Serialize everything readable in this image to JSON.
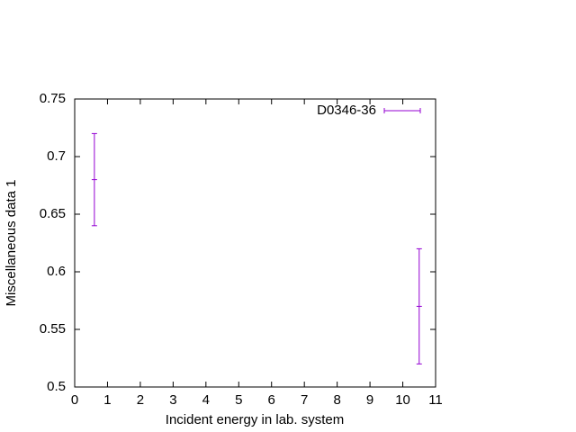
{
  "chart_data": {
    "type": "errorbar",
    "x_label": "Incident energy in lab. system",
    "y_label": "Miscellaneous data 1",
    "x": [
      0.6,
      10.5
    ],
    "series": [
      {
        "name": "D0346-36",
        "color": "#9400d3",
        "values": [
          0.68,
          0.57
        ],
        "errors": [
          0.04,
          0.05
        ]
      }
    ],
    "xlim": [
      0,
      11
    ],
    "xticks": [
      0,
      1,
      2,
      3,
      4,
      5,
      6,
      7,
      8,
      9,
      10,
      11
    ],
    "ylim": [
      0.5,
      0.75
    ],
    "yticks": [
      0.5,
      0.55,
      0.6,
      0.65,
      0.7,
      0.75
    ],
    "legend": "top-right"
  }
}
